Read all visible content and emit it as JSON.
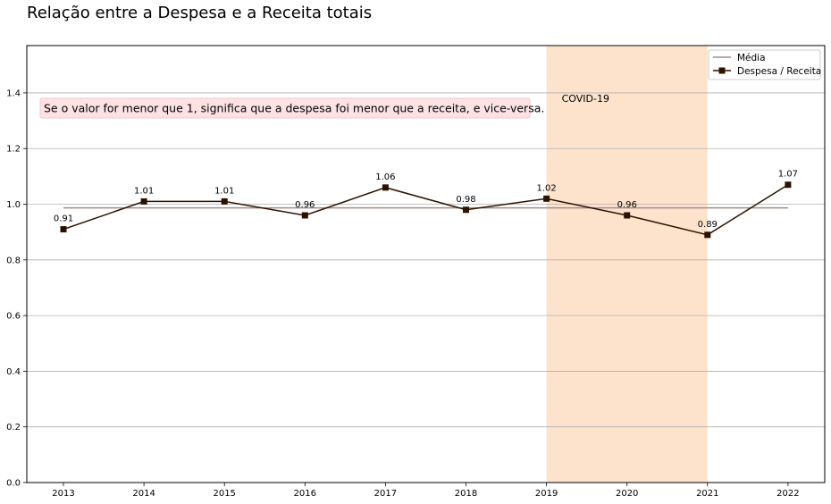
{
  "chart_data": {
    "type": "line",
    "title": "Relação entre a Despesa e a Receita totais",
    "xlabel": "",
    "ylabel": "",
    "x": [
      "2013",
      "2014",
      "2015",
      "2016",
      "2017",
      "2018",
      "2019",
      "2020",
      "2021",
      "2022"
    ],
    "series": [
      {
        "name": "Despesa / Receita",
        "values": [
          0.91,
          1.01,
          1.01,
          0.96,
          1.06,
          0.98,
          1.02,
          0.96,
          0.89,
          1.07
        ],
        "data_labels": [
          "0.91",
          "1.01",
          "1.01",
          "0.96",
          "1.06",
          "0.98",
          "1.02",
          "0.96",
          "0.89",
          "1.07"
        ],
        "color": "#2b1200",
        "marker": "square"
      },
      {
        "name": "Média",
        "value": 0.987,
        "color": "#a38e8a",
        "style": "horizontal-line"
      }
    ],
    "ylim": [
      0,
      1.57
    ],
    "yticks": [
      "0.0",
      "0.2",
      "0.4",
      "0.6",
      "0.8",
      "1.0",
      "1.2",
      "1.4"
    ],
    "grid": "horizontal",
    "legend_position": "top-right",
    "highlight": {
      "label": "COVID-19",
      "x_start": "2019",
      "x_end": "2021",
      "color": "#fde3cc"
    },
    "note": {
      "text": "Se o valor for menor que 1, significa que a despesa foi menor que a receita, e vice-versa.",
      "background": "#fde2e4"
    }
  }
}
